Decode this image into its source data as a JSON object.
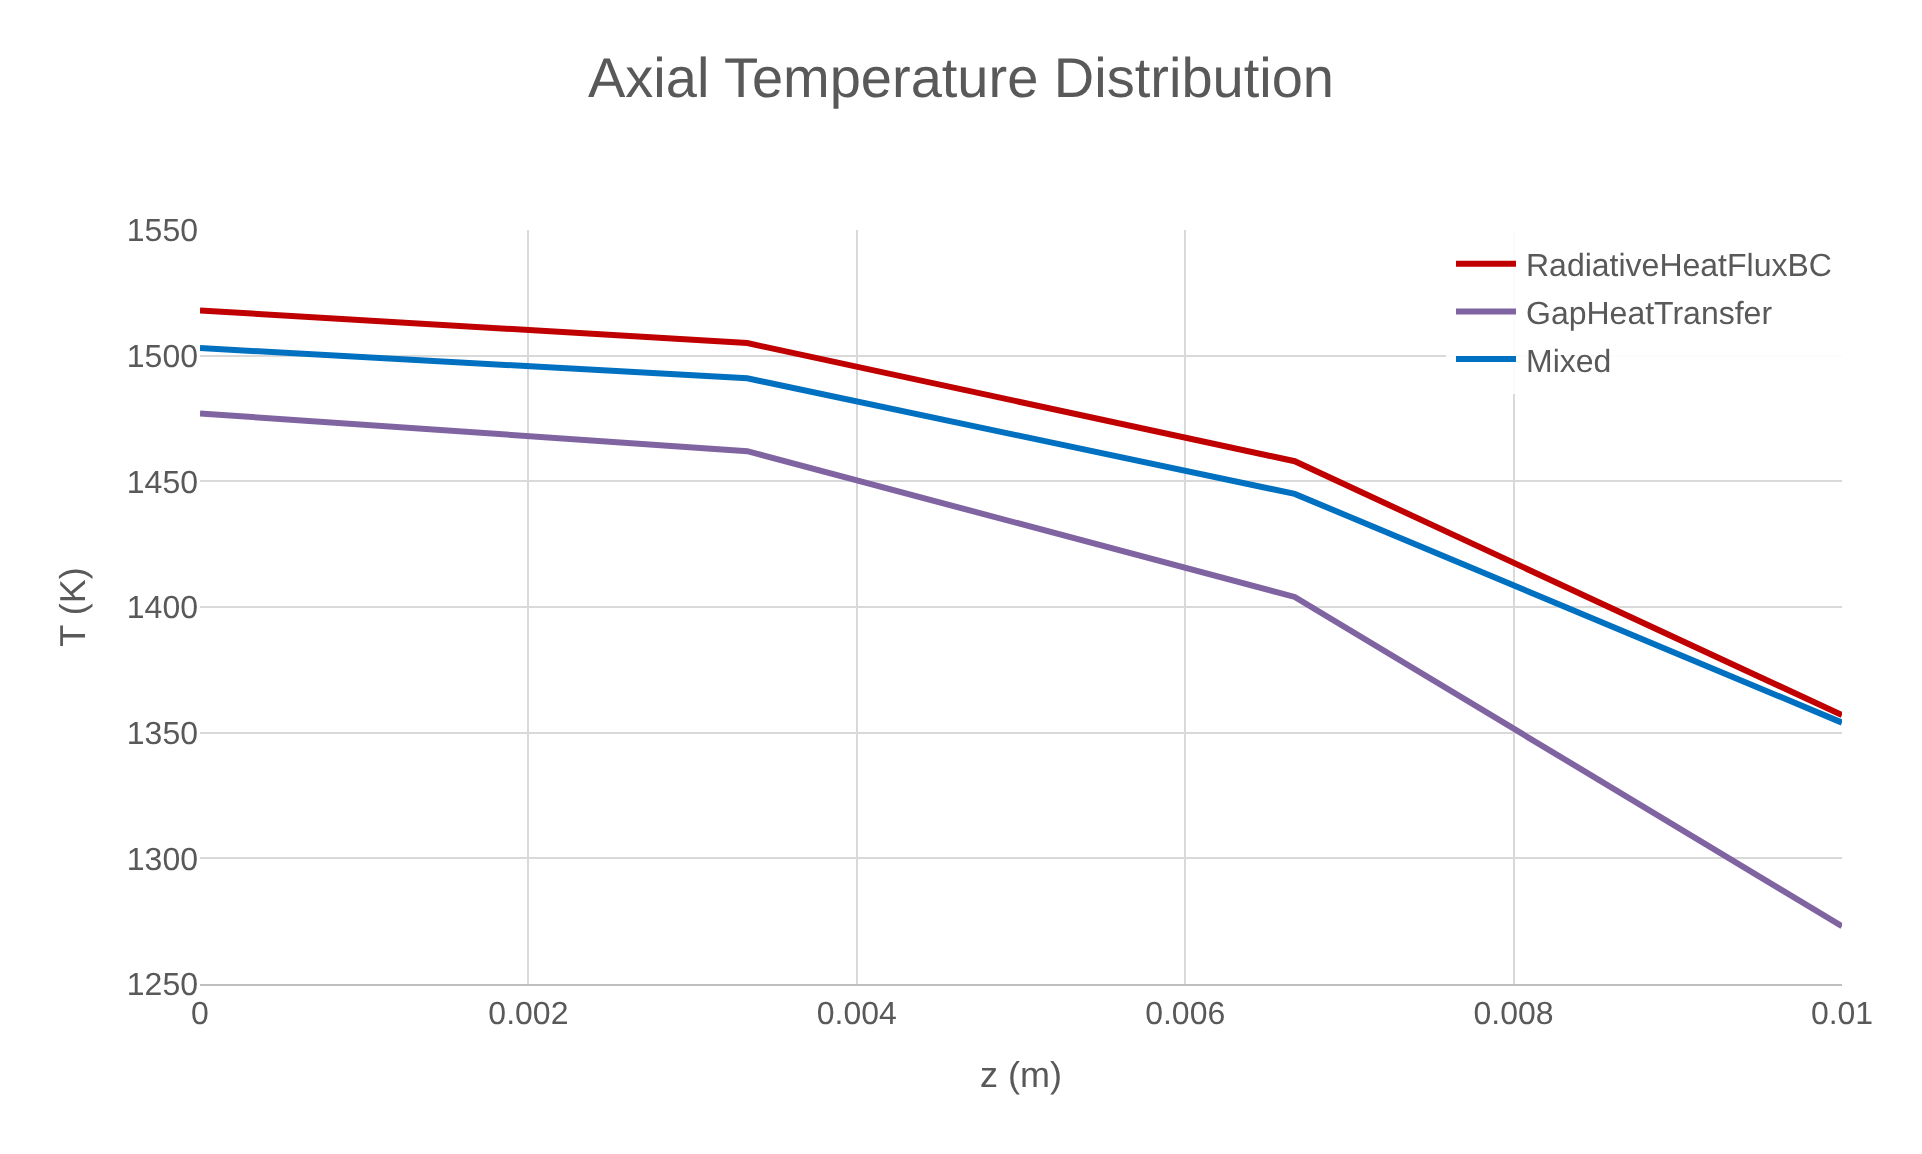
{
  "chart_data": {
    "type": "line",
    "title": "Axial Temperature Distribution",
    "xlabel": "z (m)",
    "ylabel": "T (K)",
    "x": [
      0,
      0.003333,
      0.006667,
      0.01
    ],
    "series": [
      {
        "name": "RadiativeHeatFluxBC",
        "color": "#c00000",
        "values": [
          1518,
          1505,
          1458,
          1357
        ]
      },
      {
        "name": "GapHeatTransfer",
        "color": "#8064a2",
        "values": [
          1477,
          1462,
          1404,
          1273
        ]
      },
      {
        "name": "Mixed",
        "color": "#0070c0",
        "values": [
          1503,
          1491,
          1445,
          1354
        ]
      }
    ],
    "xlim": [
      0,
      0.01
    ],
    "xticks": [
      0,
      0.002,
      0.004,
      0.006,
      0.008,
      0.01
    ],
    "ylim": [
      1250,
      1550
    ],
    "yticks": [
      1250,
      1300,
      1350,
      1400,
      1450,
      1500,
      1550
    ],
    "grid": true,
    "legend": "top right",
    "marker": "none",
    "line_style": "solid"
  }
}
